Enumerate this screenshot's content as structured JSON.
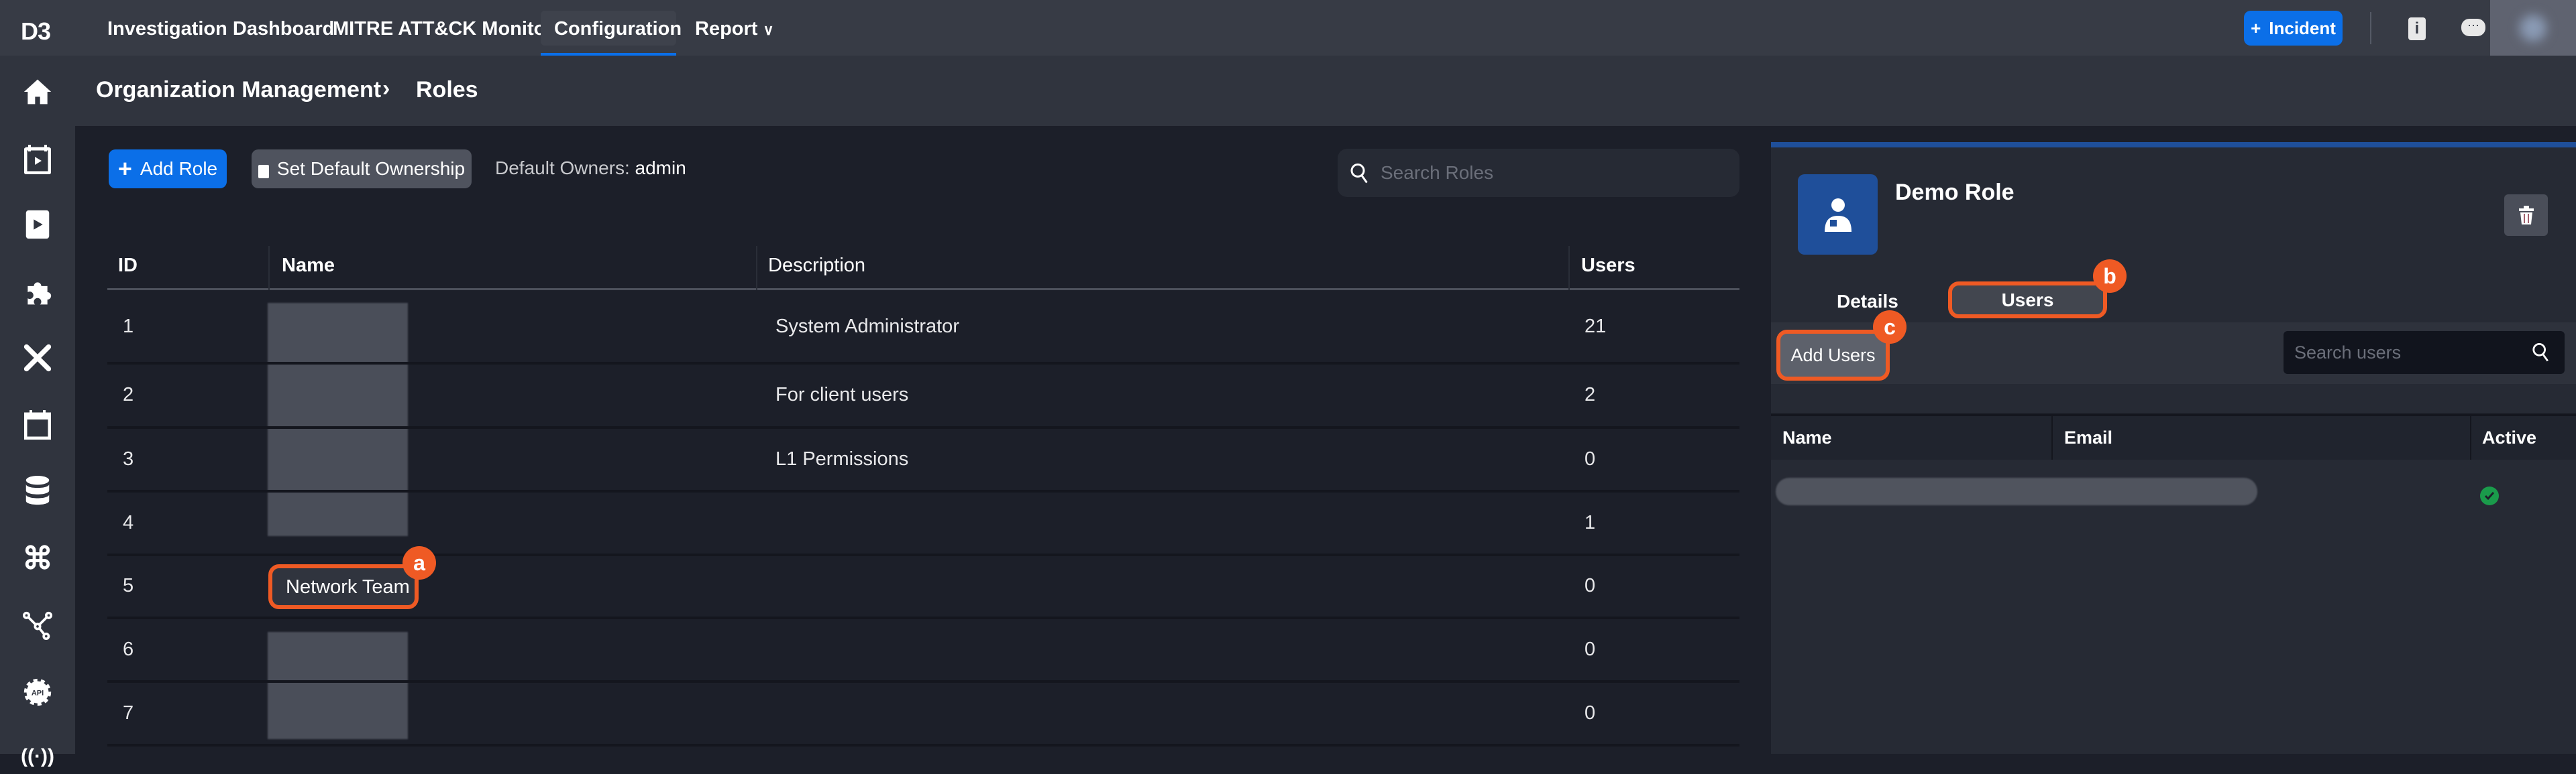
{
  "topnav": {
    "logo": "D3",
    "items": [
      {
        "label": "Investigation Dashboard"
      },
      {
        "label": "MITRE ATT&CK Monitor"
      },
      {
        "label": "Configuration",
        "active": true
      },
      {
        "label": "Report"
      }
    ],
    "incident_button": "Incident",
    "icons": [
      "info-doc-icon",
      "chat-icon",
      "user-avatar"
    ]
  },
  "sidebar": {
    "icons": [
      "home-icon",
      "calendar-play-icon",
      "playbook-icon",
      "puzzle-icon",
      "tools-icon",
      "calendar-icon",
      "database-icon",
      "command-icon",
      "network-icon",
      "api-gear-icon",
      "broadcast-icon"
    ]
  },
  "breadcrumb": {
    "parent": "Organization Management",
    "separator": "›",
    "current": "Roles"
  },
  "toolbar": {
    "add_role": "Add Role",
    "set_default_ownership": "Set Default Ownership",
    "default_owners_label": "Default Owners:",
    "default_owners_value": "admin",
    "search_placeholder": "Search Roles"
  },
  "roles_table": {
    "columns": [
      "ID",
      "Name",
      "Description",
      "Users"
    ],
    "rows": [
      {
        "id": "1",
        "name": "",
        "description": "System Administrator",
        "users": "21"
      },
      {
        "id": "2",
        "name": "",
        "description": "For client users",
        "users": "2"
      },
      {
        "id": "3",
        "name": "",
        "description": "L1 Permissions",
        "users": "0"
      },
      {
        "id": "4",
        "name": "",
        "description": "",
        "users": "1"
      },
      {
        "id": "5",
        "name": "Network Team",
        "description": "",
        "users": "0"
      },
      {
        "id": "6",
        "name": "",
        "description": "",
        "users": "0"
      },
      {
        "id": "7",
        "name": "",
        "description": "",
        "users": "0"
      }
    ]
  },
  "detail_panel": {
    "title": "Demo Role",
    "tabs": [
      {
        "label": "Details"
      },
      {
        "label": "Users",
        "active": true
      }
    ],
    "add_users": "Add Users",
    "search_placeholder": "Search users",
    "columns": [
      "Name",
      "Email",
      "Active"
    ],
    "rows": [
      {
        "name": "",
        "email": "",
        "active": true
      }
    ]
  },
  "annotations": {
    "a": "a",
    "b": "b",
    "c": "c"
  },
  "colors": {
    "accent": "#0b6fe8",
    "highlight": "#ef5a24",
    "active": "#1a9b4b",
    "panel_top": "#1f4f9a"
  }
}
